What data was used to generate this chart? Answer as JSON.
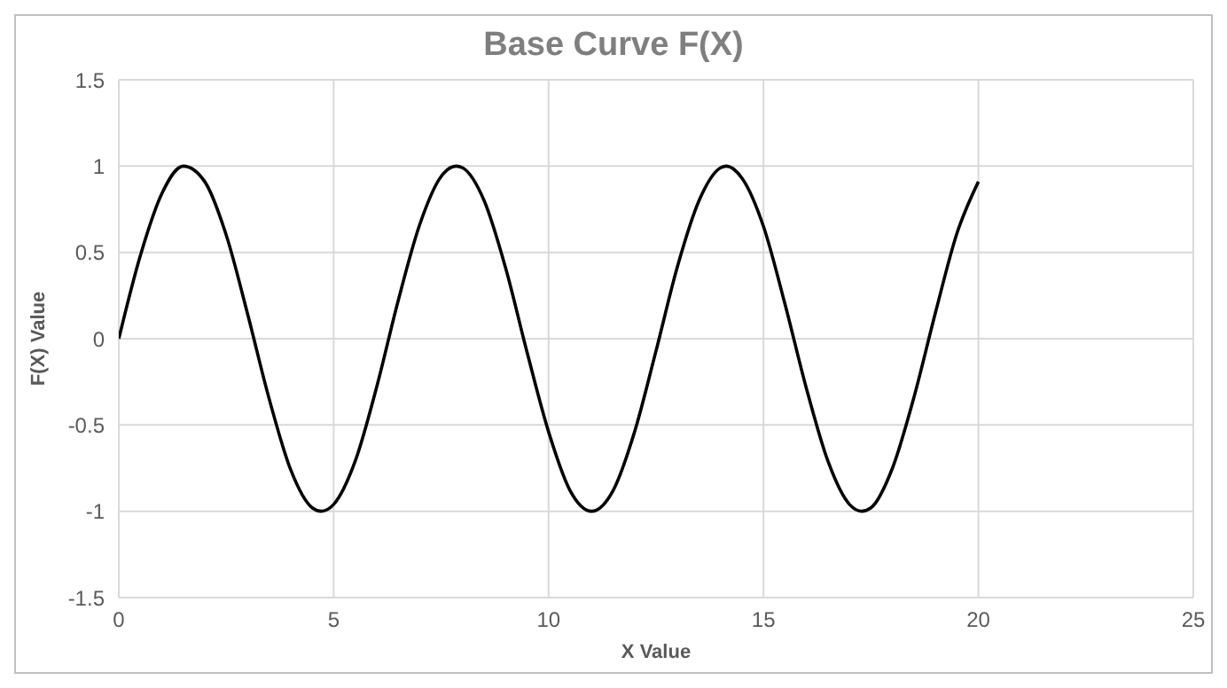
{
  "chart_data": {
    "type": "line",
    "title": "Base Curve F(X)",
    "xlabel": "X Value",
    "ylabel": "F(X) Value",
    "x": [
      0,
      0.5,
      1,
      1.5,
      2,
      2.5,
      3,
      3.5,
      4,
      4.5,
      4.71,
      5,
      5.5,
      6,
      6.5,
      7,
      7.5,
      7.85,
      8,
      8.5,
      9,
      9.5,
      10,
      10.5,
      11,
      11.5,
      12,
      12.5,
      13,
      13.5,
      14,
      14.14,
      14.5,
      15,
      15.5,
      16,
      16.5,
      17,
      17.28,
      17.5,
      18,
      18.5,
      19,
      19.5,
      20
    ],
    "series": [
      {
        "color": "#000000",
        "values": [
          0,
          0.48,
          0.84,
          1.0,
          0.91,
          0.6,
          0.14,
          -0.35,
          -0.76,
          -0.98,
          -1,
          -0.96,
          -0.71,
          -0.28,
          0.22,
          0.66,
          0.94,
          1,
          0.99,
          0.8,
          0.41,
          -0.08,
          -0.54,
          -0.88,
          -1.0,
          -0.88,
          -0.54,
          -0.07,
          0.42,
          0.8,
          0.99,
          1,
          0.93,
          0.65,
          0.2,
          -0.29,
          -0.71,
          -0.96,
          -1,
          -0.98,
          -0.75,
          -0.34,
          0.15,
          0.61,
          0.91
        ]
      }
    ],
    "xlim": [
      0,
      25
    ],
    "xticks": [
      0,
      5,
      10,
      15,
      20,
      25
    ],
    "ylim": [
      -1.5,
      1.5
    ],
    "yticks": [
      -1.5,
      -1,
      -0.5,
      0,
      0.5,
      1,
      1.5
    ],
    "grid": true,
    "legend": false,
    "marker": "none",
    "line_style": "solid"
  }
}
